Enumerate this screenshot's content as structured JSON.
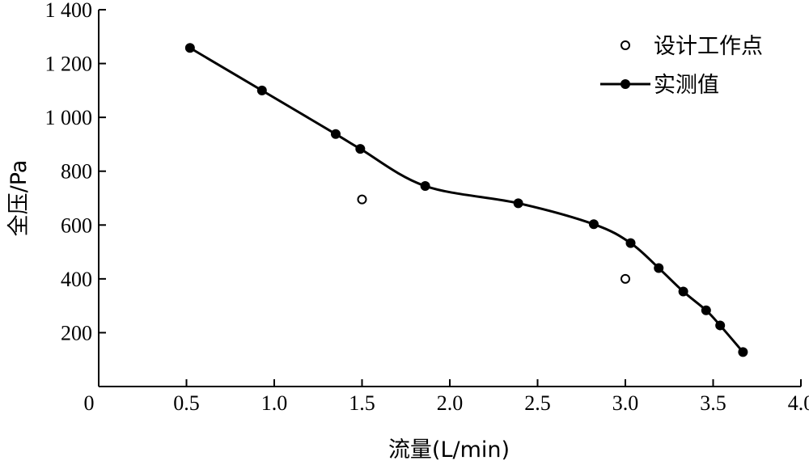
{
  "chart_data": {
    "type": "line",
    "xlabel": "流量(L/min)",
    "ylabel": "全压/Pa",
    "xlim": [
      0,
      4.0
    ],
    "ylim": [
      0,
      1400
    ],
    "x_ticks": [
      {
        "value": 0,
        "label": "0"
      },
      {
        "value": 0.5,
        "label": "0.5"
      },
      {
        "value": 1.0,
        "label": "1.0"
      },
      {
        "value": 1.5,
        "label": "1.5"
      },
      {
        "value": 2.0,
        "label": "2.0"
      },
      {
        "value": 2.5,
        "label": "2.5"
      },
      {
        "value": 3.0,
        "label": "3.0"
      },
      {
        "value": 3.5,
        "label": "3.5"
      },
      {
        "value": 4.0,
        "label": "4.0"
      }
    ],
    "y_ticks": [
      {
        "value": 200,
        "label": "200"
      },
      {
        "value": 400,
        "label": "400"
      },
      {
        "value": 600,
        "label": "600"
      },
      {
        "value": 800,
        "label": "800"
      },
      {
        "value": 1000,
        "label": "1 000"
      },
      {
        "value": 1200,
        "label": "1 200"
      },
      {
        "value": 1400,
        "label": "1 400"
      }
    ],
    "grid": false,
    "legend_position": "top-right",
    "series": [
      {
        "name": "设计工作点",
        "style": "open-circle",
        "color": "#000000",
        "x": [
          1.5,
          3.0
        ],
        "y": [
          695,
          400
        ]
      },
      {
        "name": "实测值",
        "style": "line-filled-circle",
        "color": "#000000",
        "x": [
          0.52,
          0.93,
          1.35,
          1.49,
          1.86,
          2.39,
          2.82,
          3.03,
          3.19,
          3.33,
          3.46,
          3.54,
          3.67
        ],
        "y": [
          1258,
          1100,
          938,
          883,
          745,
          681,
          603,
          533,
          440,
          353,
          283,
          227,
          128
        ]
      }
    ]
  }
}
